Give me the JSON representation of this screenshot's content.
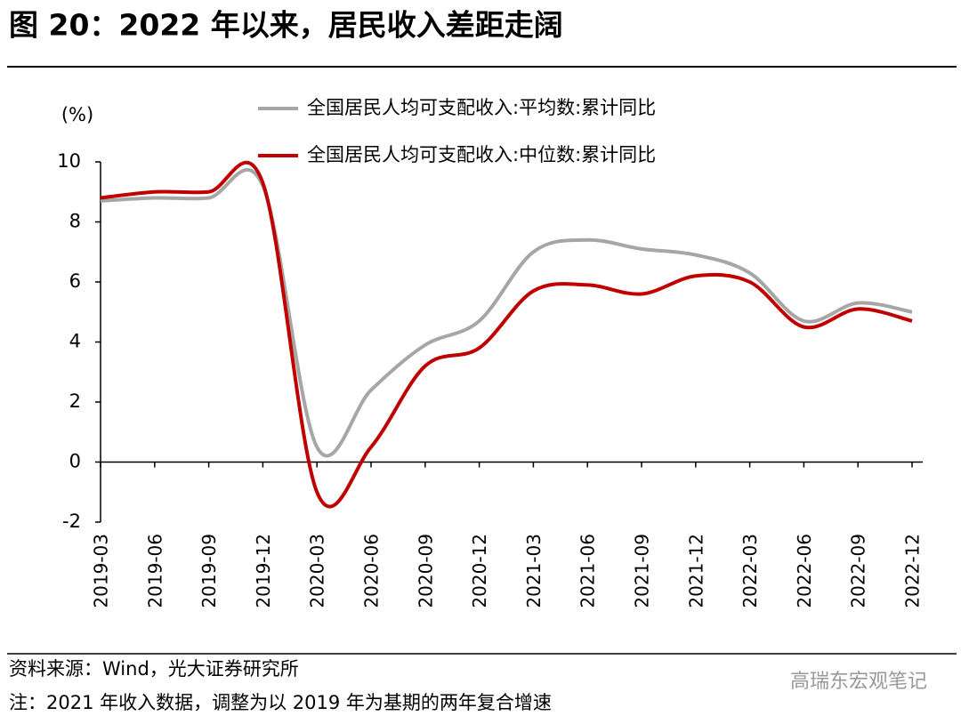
{
  "chart_data": {
    "type": "line",
    "title": "图 20：2022 年以来，居民收入差距走阔",
    "y_label": "(%)",
    "categories": [
      "2019-03",
      "2019-06",
      "2019-09",
      "2019-12",
      "2020-03",
      "2020-06",
      "2020-09",
      "2020-12",
      "2021-03",
      "2021-06",
      "2021-09",
      "2021-12",
      "2022-03",
      "2022-06",
      "2022-09",
      "2022-12"
    ],
    "series": [
      {
        "name": "全国居民人均可支配收入:平均数:累计同比",
        "color": "#a6a6a6",
        "values": [
          8.7,
          8.8,
          8.8,
          9.2,
          0.5,
          2.4,
          3.9,
          4.7,
          7.0,
          7.4,
          7.1,
          6.9,
          6.3,
          4.7,
          5.3,
          5.0
        ]
      },
      {
        "name": "全国居民人均可支配收入:中位数:累计同比",
        "color": "#c00000",
        "values": [
          8.8,
          9.0,
          9.0,
          9.3,
          -1.0,
          0.5,
          3.2,
          3.8,
          5.7,
          5.9,
          5.6,
          6.2,
          6.0,
          4.5,
          5.1,
          4.7
        ]
      }
    ],
    "ylim": [
      -2,
      10
    ],
    "yticks": [
      -2,
      0,
      2,
      4,
      6,
      8,
      10
    ],
    "legend": "top-right"
  },
  "source": "资料来源：Wind，光大证券研究所",
  "note": "注：2021 年收入数据，调整为以 2019 年为基期的两年复合增速",
  "watermark": "高瑞东宏观笔记"
}
